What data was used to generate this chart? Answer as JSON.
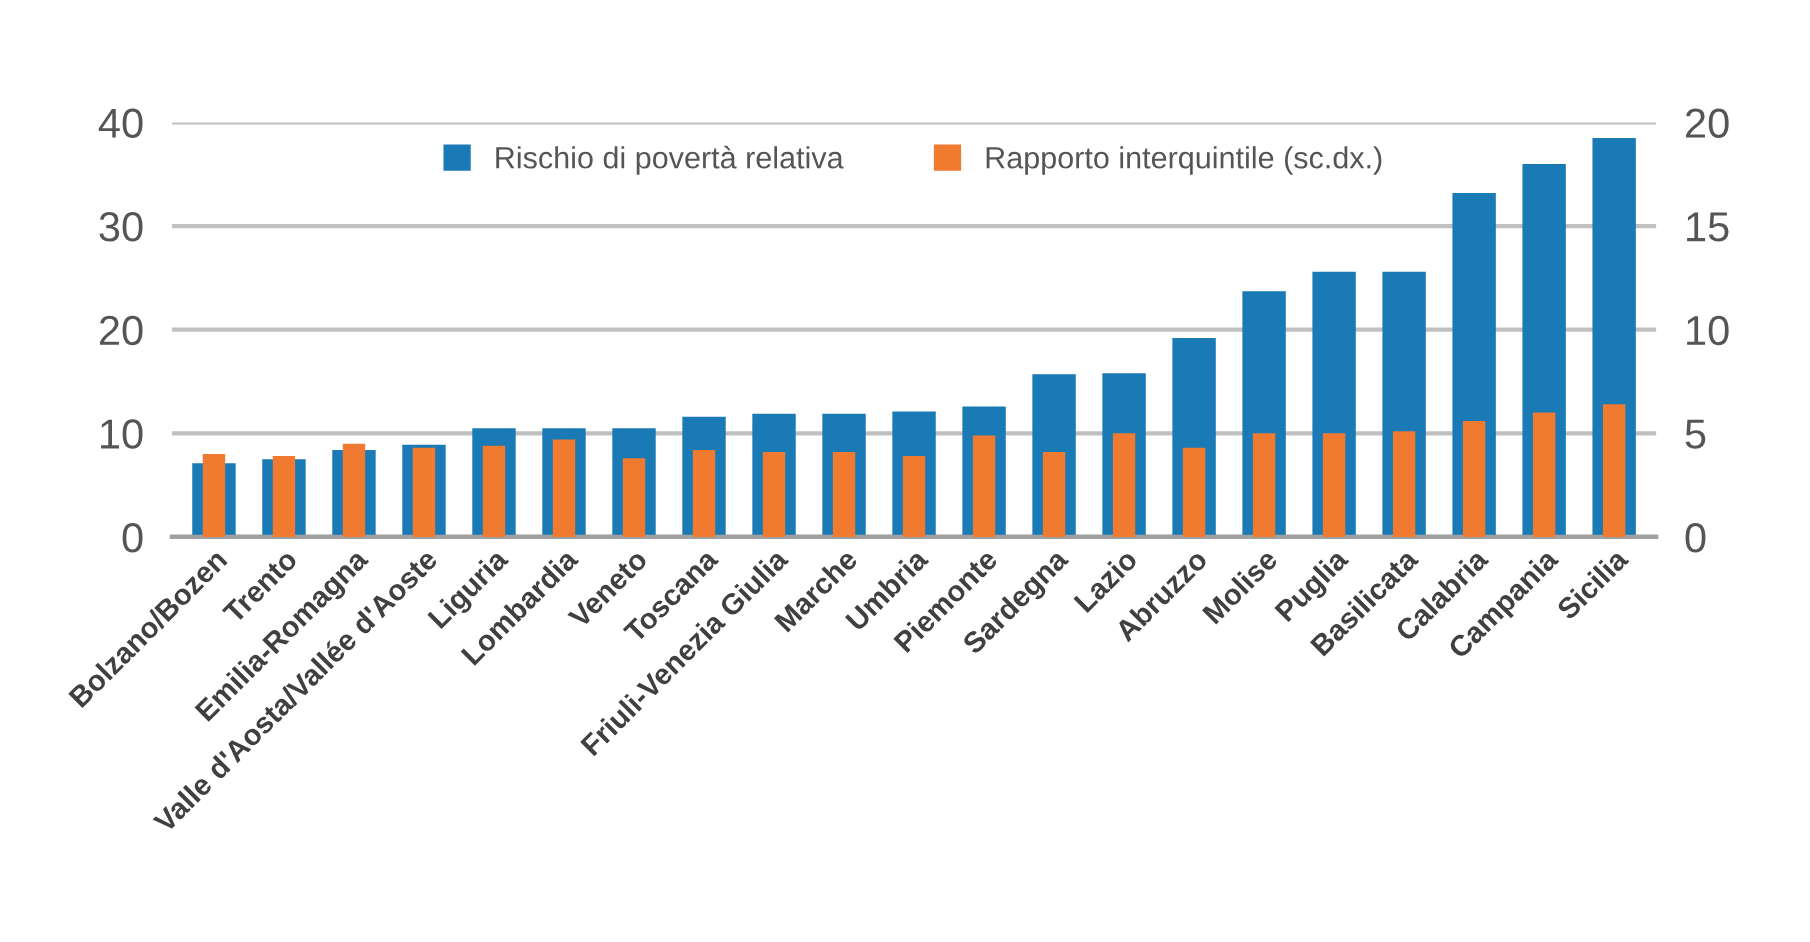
{
  "chart_data": {
    "type": "bar",
    "categories": [
      "Bolzano/Bozen",
      "Trento",
      "Emilia-Romagna",
      "Valle d'Aosta/Vallée d'Aoste",
      "Liguria",
      "Lombardia",
      "Veneto",
      "Toscana",
      "Friuli-Venezia Giulia",
      "Marche",
      "Umbria",
      "Piemonte",
      "Sardegna",
      "Lazio",
      "Abruzzo",
      "Molise",
      "Puglia",
      "Basilicata",
      "Calabria",
      "Campania",
      "Sicilia"
    ],
    "series": [
      {
        "name": "Rischio di povertà relativa",
        "color": "#1a7ab5",
        "values": [
          7.1,
          7.5,
          8.4,
          8.9,
          10.5,
          10.5,
          10.5,
          11.6,
          11.9,
          11.9,
          12.1,
          12.6,
          15.7,
          15.8,
          19.2,
          23.7,
          25.6,
          25.6,
          33.2,
          36.0,
          38.5
        ]
      },
      {
        "name": "Rapporto interquintile (sc.dx.)",
        "color": "#f07a30",
        "axis": "y2",
        "values": [
          4.0,
          3.9,
          4.5,
          4.3,
          4.4,
          4.7,
          3.8,
          4.2,
          4.1,
          4.1,
          3.9,
          4.9,
          4.1,
          5.0,
          4.3,
          5.0,
          5.0,
          5.1,
          5.6,
          6.0,
          6.4
        ]
      }
    ],
    "ylim": [
      0,
      40
    ],
    "yticks": [
      0,
      10,
      20,
      30,
      40
    ],
    "y2lim": [
      0,
      20
    ],
    "y2ticks": [
      0,
      5,
      10,
      15,
      20
    ],
    "grid": "y",
    "legend": "top"
  }
}
